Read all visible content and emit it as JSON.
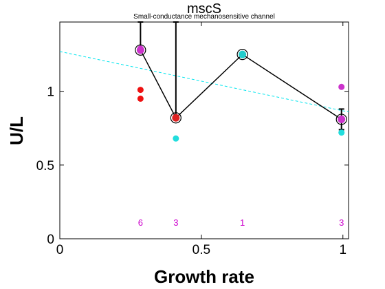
{
  "chart_data": {
    "type": "scatter",
    "title": "mscS",
    "subtitle": "Small-conductance mechanosensitive channel",
    "xlabel": "Growth rate",
    "ylabel": "U/L",
    "xlim": [
      0,
      1.02
    ],
    "ylim": [
      0,
      1.47
    ],
    "x_ticks": [
      {
        "value": 0,
        "label": "0"
      },
      {
        "value": 0.5,
        "label": "0.5"
      },
      {
        "value": 1,
        "label": "1"
      }
    ],
    "y_ticks": [
      {
        "value": 0,
        "label": "0"
      },
      {
        "value": 0.5,
        "label": "0.5"
      },
      {
        "value": 1,
        "label": "1"
      }
    ],
    "grid": false,
    "trend_line": {
      "x": [
        0,
        1.02
      ],
      "y": [
        1.27,
        0.86
      ],
      "color": "#00e5ee",
      "style": "dashed"
    },
    "mean_series": {
      "x": [
        0.285,
        0.41,
        0.645,
        0.995
      ],
      "y": [
        1.28,
        0.82,
        1.25,
        0.81
      ],
      "marker_colors": [
        "#cc33cc",
        "#dd2222",
        "#22cccc",
        "#cc33cc"
      ],
      "line_color": "#000000"
    },
    "error_bars": [
      {
        "x": 0.285,
        "low": 1.27,
        "high": 1.47
      },
      {
        "x": 0.41,
        "low": 0.81,
        "high": 1.47
      },
      {
        "x": 0.995,
        "low": 0.74,
        "high": 0.88
      }
    ],
    "samples": [
      {
        "x": 0.285,
        "y": 1.29,
        "color": "#cc33cc"
      },
      {
        "x": 0.285,
        "y": 1.01,
        "color": "#ee1111"
      },
      {
        "x": 0.285,
        "y": 0.95,
        "color": "#ee1111"
      },
      {
        "x": 0.41,
        "y": 0.82,
        "color": "#ee1111"
      },
      {
        "x": 0.41,
        "y": 0.68,
        "color": "#22dddd"
      },
      {
        "x": 0.645,
        "y": 1.25,
        "color": "#22dddd"
      },
      {
        "x": 0.995,
        "y": 1.03,
        "color": "#cc33cc"
      },
      {
        "x": 0.995,
        "y": 0.81,
        "color": "#cc33cc"
      },
      {
        "x": 0.995,
        "y": 0.72,
        "color": "#22dddd"
      }
    ],
    "counts": [
      {
        "x": 0.285,
        "label": "6"
      },
      {
        "x": 0.41,
        "label": "3"
      },
      {
        "x": 0.645,
        "label": "1"
      },
      {
        "x": 0.995,
        "label": "3"
      }
    ],
    "count_color": "#cc00cc"
  }
}
